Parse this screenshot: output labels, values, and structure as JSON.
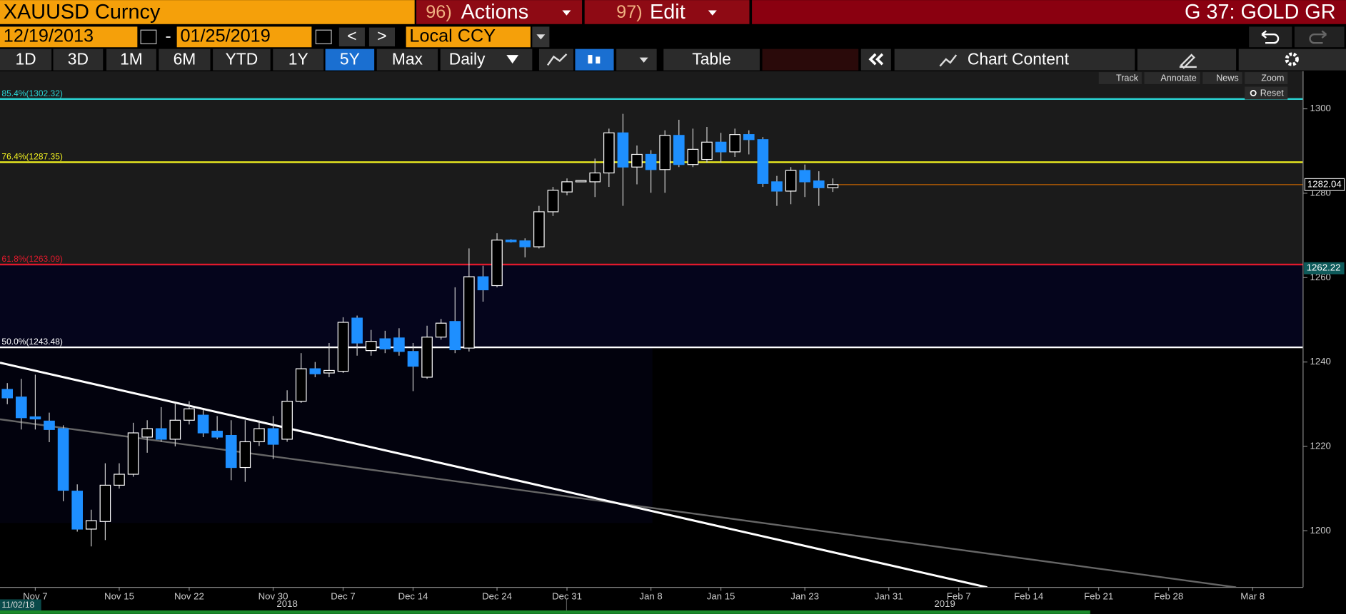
{
  "ui": {
    "security": "XAUUSD Curncy",
    "menu": [
      {
        "key": "96)",
        "label": "Actions"
      },
      {
        "key": "97)",
        "label": "Edit"
      }
    ],
    "function_title": "G 37: GOLD GR",
    "start_date": "12/19/2013",
    "date_separator": "-",
    "end_date": "01/25/2019",
    "prev": "<",
    "next": ">",
    "currency": "Local CCY",
    "periods": [
      "1D",
      "3D",
      "1M",
      "6M",
      "YTD",
      "1Y",
      "5Y",
      "Max"
    ],
    "selected_period": "5Y",
    "frequency": "Daily",
    "table": "Table",
    "chart_content": "Chart Content",
    "tools": [
      "Track",
      "Annotate",
      "News",
      "Zoom"
    ],
    "reset": "Reset"
  },
  "chart_data": {
    "type": "candlestick",
    "categories": [
      null,
      null,
      "Nov 7",
      null,
      null,
      null,
      null,
      null,
      "Nov 15",
      null,
      null,
      null,
      null,
      "Nov 22",
      null,
      null,
      null,
      null,
      null,
      "Nov 30",
      null,
      null,
      null,
      null,
      "Dec 7",
      null,
      null,
      null,
      null,
      "Dec 14",
      null,
      null,
      null,
      null,
      null,
      "Dec 24",
      null,
      null,
      null,
      null,
      "Dec 31",
      null,
      null,
      null,
      null,
      null,
      "Jan 8",
      null,
      null,
      null,
      null,
      "Jan 15",
      null,
      null,
      null,
      null,
      null,
      "Jan 23",
      null,
      null,
      null,
      null,
      null,
      "Jan 31",
      null,
      null,
      null,
      null,
      "Feb 7",
      null,
      null,
      null,
      null,
      "Feb 14",
      null,
      null,
      null,
      null,
      "Feb 21",
      null,
      null,
      null,
      null,
      "Feb 28",
      null,
      null,
      null,
      null,
      null,
      "Mar 8",
      null,
      null,
      null
    ],
    "open": [
      1233.5,
      1231.7,
      1227,
      1226,
      1224.2,
      1209.4,
      1200.4,
      1202.2,
      1210.8,
      1213.4,
      1222.2,
      1224.2,
      1221.7,
      1226.2,
      1227.4,
      1223.6,
      1222.6,
      1215,
      1221.1,
      1224.2,
      1221.7,
      1230.7,
      1238.4,
      1237.4,
      1237.8,
      1250.4,
      1242.7,
      1245.5,
      1245.7,
      1242.5,
      1236.4,
      1245.9,
      1249.6,
      1243.3,
      1260.2,
      1258.1,
      1268.9,
      1268.7,
      1267.3,
      1275.6,
      1280.3,
      1282.9,
      1282.7,
      1284.8,
      1294.3,
      1286.2,
      1289.2,
      1285.6,
      1293.7,
      1286.8,
      1288,
      1292.1,
      1289.8,
      1293.9,
      1292.7,
      1282.7,
      1280.5,
      1285.4,
      1282.9,
      1281.3,
      null,
      null,
      null,
      null,
      null,
      null,
      null,
      null,
      null,
      null,
      null,
      null,
      null,
      null,
      null,
      null,
      null,
      null,
      null,
      null,
      null,
      null,
      null,
      null,
      null,
      null,
      null,
      null,
      null,
      null,
      null,
      null,
      null
    ],
    "high": [
      1235,
      1236,
      1237,
      1228,
      1225,
      1211,
      1205,
      1216,
      1216,
      1225.6,
      1226.2,
      1229.3,
      1230.3,
      1230.7,
      1228.7,
      1227.2,
      1226.2,
      1226.2,
      1226.2,
      1227.2,
      1233.3,
      1242.1,
      1240,
      1244.5,
      1250.6,
      1251,
      1247.6,
      1247.4,
      1248,
      1244.5,
      1248.6,
      1250.2,
      1257.7,
      1266.9,
      1262.8,
      1270.5,
      1269.1,
      1269.3,
      1277,
      1281.5,
      1283.5,
      1283.1,
      1288.2,
      1295.3,
      1298.8,
      1291.3,
      1290.2,
      1294.9,
      1297.4,
      1295.3,
      1295.7,
      1294.3,
      1295.3,
      1294.9,
      1293.3,
      1284.1,
      1286.2,
      1286.8,
      1285.2,
      1283.5,
      null,
      null,
      null,
      null,
      null,
      null,
      null,
      null,
      null,
      null,
      null,
      null,
      null,
      null,
      null,
      null,
      null,
      null,
      null,
      null,
      null,
      null,
      null,
      null,
      null,
      null,
      null,
      null,
      null,
      null,
      null,
      null,
      null
    ],
    "low": [
      1230,
      1224,
      1224,
      1221,
      1207,
      1199.8,
      1196.3,
      1197.8,
      1210,
      1212.8,
      1218.5,
      1221.1,
      1220,
      1225.2,
      1222.2,
      1221.7,
      1212,
      1211.6,
      1220.1,
      1217,
      1221.1,
      1230.3,
      1236.4,
      1236.4,
      1237.4,
      1241.5,
      1241.5,
      1242.1,
      1241.5,
      1233.1,
      1236,
      1245.3,
      1242.1,
      1242.5,
      1254.3,
      1257.7,
      1268.3,
      1264.8,
      1266.9,
      1274.6,
      1279.5,
      1282.7,
      1279.1,
      1281.5,
      1277,
      1282.1,
      1280.1,
      1280.1,
      1286.2,
      1286.2,
      1287.2,
      1287.2,
      1288.6,
      1289.2,
      1281.5,
      1277,
      1277.4,
      1279.1,
      1277,
      1280.3,
      null,
      null,
      null,
      null,
      null,
      null,
      null,
      null,
      null,
      null,
      null,
      null,
      null,
      null,
      null,
      null,
      null,
      null,
      null,
      null,
      null,
      null,
      null,
      null,
      null,
      null,
      null,
      null,
      null,
      null,
      null,
      null,
      null
    ],
    "close": [
      1231.5,
      1226.8,
      1226.5,
      1224,
      1209.6,
      1200.4,
      1202.4,
      1210.8,
      1213.4,
      1223.2,
      1224.2,
      1221.7,
      1226.2,
      1228.9,
      1223.2,
      1222.2,
      1215,
      1221.1,
      1224.2,
      1220.5,
      1230.7,
      1238.4,
      1237.2,
      1238,
      1249.4,
      1244.5,
      1244.9,
      1243.1,
      1242.5,
      1239,
      1245.9,
      1249.2,
      1242.9,
      1260.2,
      1257.1,
      1268.9,
      1268.5,
      1267.3,
      1275.6,
      1280.7,
      1282.7,
      1283,
      1284.8,
      1294.3,
      1286.2,
      1289.2,
      1285.6,
      1293.7,
      1286.8,
      1290.4,
      1292.1,
      1289.8,
      1293.9,
      1292.7,
      1282.3,
      1280.5,
      1285.4,
      1282.7,
      1281.3,
      1282.04,
      null,
      null,
      null,
      null,
      null,
      null,
      null,
      null,
      null,
      null,
      null,
      null,
      null,
      null,
      null,
      null,
      null,
      null,
      null,
      null,
      null,
      null,
      null,
      null,
      null,
      null,
      null,
      null,
      null,
      null,
      null,
      null,
      null
    ],
    "up_color": "#ffffff",
    "down_color": "#1e8fff",
    "ylim": [
      1186.6,
      1308.9
    ],
    "yticks": [
      1200,
      1220,
      1240,
      1260,
      1280,
      1300
    ],
    "fib_levels": [
      {
        "label": "85.4%(1302.32)",
        "value": 1302.32,
        "color": "#2ad4d4"
      },
      {
        "label": "76.4%(1287.35)",
        "value": 1287.35,
        "color": "#f0f020"
      },
      {
        "label": "61.8%(1263.09)",
        "value": 1263.09,
        "color": "#e0192c"
      },
      {
        "label": "50.0%(1243.48)",
        "value": 1243.48,
        "color": "#ffffff"
      }
    ],
    "last_price": {
      "value": 1282.04,
      "color": "#c86400"
    },
    "marker_price": {
      "value": 1262.22,
      "color": "#0e5a5a"
    },
    "start_label": "11/02/18",
    "years": [
      {
        "label": "2018",
        "index": 20
      },
      {
        "label": "2019",
        "index": 67
      }
    ]
  }
}
